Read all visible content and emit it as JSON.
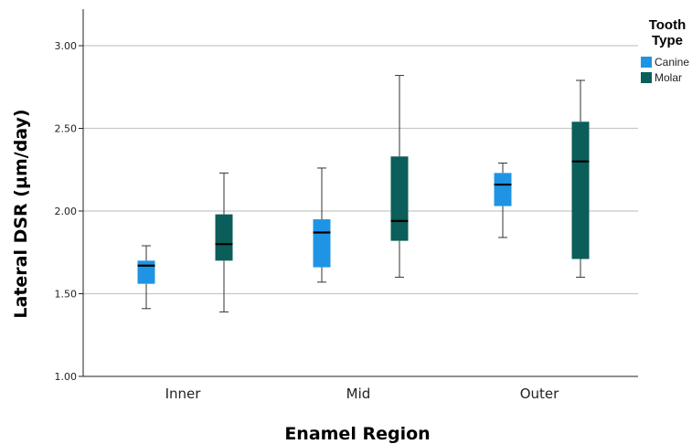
{
  "chart_data": {
    "type": "boxplot",
    "xlabel": "Enamel Region",
    "ylabel": "Lateral DSR (µm/day)",
    "ylim": [
      1.0,
      3.15
    ],
    "yticks": [
      "1.00",
      "1.50",
      "2.00",
      "2.50",
      "3.00"
    ],
    "ytick_values": [
      1.0,
      1.5,
      2.0,
      2.5,
      3.0
    ],
    "grid": true,
    "legend_position": "top-right",
    "legend_title_lines": [
      "Tooth",
      "Type"
    ],
    "categories": [
      "Inner",
      "Mid",
      "Outer"
    ],
    "series": [
      {
        "name": "Canine",
        "color": "#1f94e5",
        "boxes": [
          {
            "min": 1.41,
            "q1": 1.56,
            "median": 1.67,
            "q3": 1.7,
            "max": 1.79
          },
          {
            "min": 1.57,
            "q1": 1.66,
            "median": 1.87,
            "q3": 1.95,
            "max": 2.26
          },
          {
            "min": 1.84,
            "q1": 2.03,
            "median": 2.16,
            "q3": 2.23,
            "max": 2.29
          }
        ]
      },
      {
        "name": "Molar",
        "color": "#0b5e59",
        "boxes": [
          {
            "min": 1.39,
            "q1": 1.7,
            "median": 1.8,
            "q3": 1.98,
            "max": 2.23
          },
          {
            "min": 1.6,
            "q1": 1.82,
            "median": 1.94,
            "q3": 2.33,
            "max": 2.82
          },
          {
            "min": 1.6,
            "q1": 1.71,
            "median": 2.3,
            "q3": 2.54,
            "max": 2.79
          }
        ]
      }
    ]
  }
}
